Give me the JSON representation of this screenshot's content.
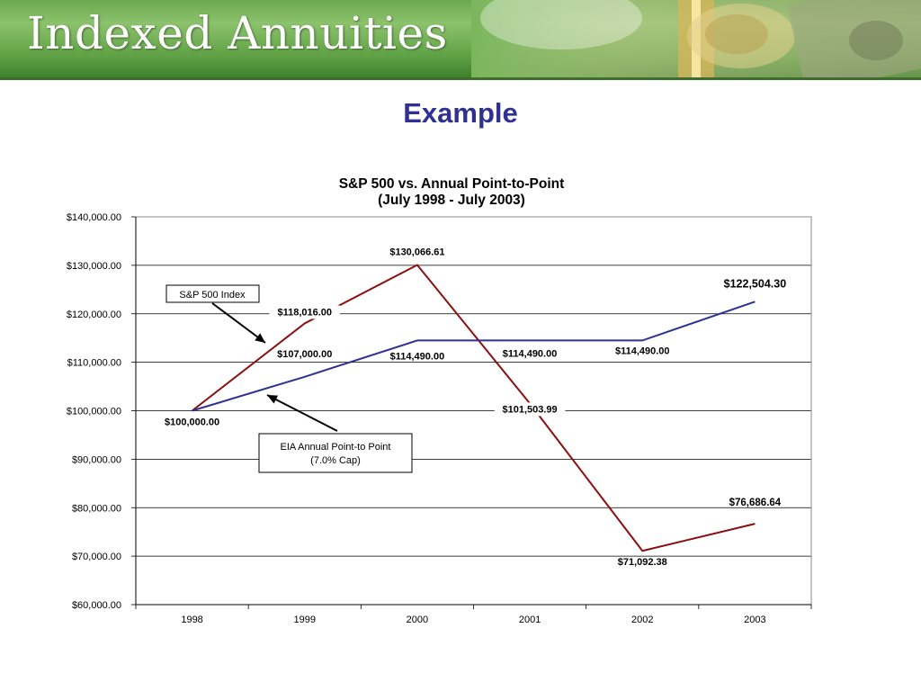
{
  "header": {
    "title": "Indexed Annuities"
  },
  "slide": {
    "heading": "Example"
  },
  "chart_data": {
    "type": "line",
    "title": "S&P 500 vs. Annual Point-to-Point",
    "subtitle": "(July 1998 - July 2003)",
    "categories": [
      "1998",
      "1999",
      "2000",
      "2001",
      "2002",
      "2003"
    ],
    "ylim": [
      60000,
      140000
    ],
    "ytick_labels": [
      "$60,000.00",
      "$70,000.00",
      "$80,000.00",
      "$90,000.00",
      "$100,000.00",
      "$110,000.00",
      "$120,000.00",
      "$130,000.00",
      "$140,000.00"
    ],
    "grid": true,
    "series": [
      {
        "name": "S&P 500 Index",
        "color": "#8b0f0f",
        "values": [
          100000.0,
          118016.0,
          130066.61,
          101503.99,
          71092.38,
          76686.64
        ],
        "labels": [
          "$100,000.00",
          "$118,016.00",
          "$130,066.61",
          "$101,503.99",
          "$71,092.38",
          "$76,686.64"
        ]
      },
      {
        "name": "EIA Annual Point-to Point (7.0% Cap)",
        "color": "#2e3192",
        "values": [
          100000.0,
          107000.0,
          114490.0,
          114490.0,
          114490.0,
          122504.3
        ],
        "labels": [
          "$100,000.00",
          "$107,000.00",
          "$114,490.00",
          "$114,490.00",
          "$114,490.00",
          "$122,504.30"
        ]
      }
    ],
    "annotations": [
      {
        "text": "S&P 500 Index",
        "points_to": "S&P 500 Index"
      },
      {
        "text": "EIA Annual Point-to Point",
        "text2": "(7.0% Cap)",
        "points_to": "EIA Annual Point-to Point (7.0% Cap)"
      }
    ]
  }
}
